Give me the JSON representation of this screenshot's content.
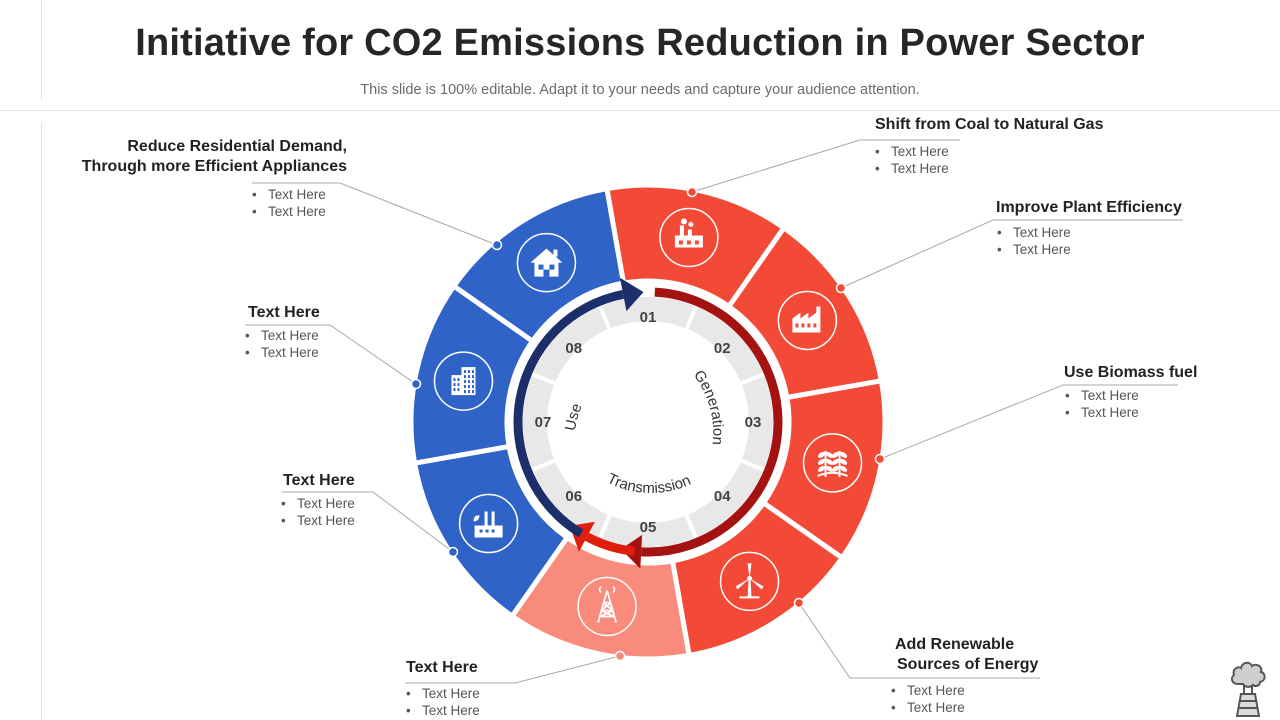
{
  "header": {
    "title": "Initiative for CO2 Emissions Reduction in Power Sector",
    "subtitle": "This slide is 100% editable. Adapt it to your needs and capture your audience attention."
  },
  "colors": {
    "red": "#F24A36",
    "red_light": "#F98B7C",
    "blue": "#3063C7",
    "dark_red_arrow": "#A51212",
    "navy_arrow": "#1C2F6B",
    "bright_red_arrow": "#E01E0E",
    "inner_ring": "#E8E8E8"
  },
  "ring": {
    "numbers": [
      "01",
      "02",
      "03",
      "04",
      "05",
      "06",
      "07",
      "08"
    ],
    "arc_labels": {
      "generation": "Generation",
      "transmission": "Transmission",
      "use": "Use"
    }
  },
  "segments": [
    {
      "icon": "power-plant-icon",
      "color": "red"
    },
    {
      "icon": "factory-icon",
      "color": "red"
    },
    {
      "icon": "crops-icon",
      "color": "red"
    },
    {
      "icon": "wind-turbine-icon",
      "color": "red"
    },
    {
      "icon": "transmission-tower-icon",
      "color": "red_light"
    },
    {
      "icon": "industrial-plant-icon",
      "color": "blue"
    },
    {
      "icon": "office-building-icon",
      "color": "blue"
    },
    {
      "icon": "house-icon",
      "color": "blue"
    }
  ],
  "callouts": {
    "seg1": {
      "title": "Shift from Coal to Natural Gas",
      "bullets": [
        "Text Here",
        "Text Here"
      ]
    },
    "seg2": {
      "title": "Improve Plant Efficiency",
      "bullets": [
        "Text Here",
        "Text Here"
      ]
    },
    "seg3": {
      "title": "Use Biomass fuel",
      "bullets": [
        "Text Here",
        "Text Here"
      ]
    },
    "seg4": {
      "title_line1": "Add Renewable",
      "title_line2": "Sources of Energy",
      "bullets": [
        "Text Here",
        "Text Here"
      ]
    },
    "seg5": {
      "title": "Text Here",
      "bullets": [
        "Text Here",
        "Text Here"
      ]
    },
    "seg6": {
      "title": "Text Here",
      "bullets": [
        "Text Here",
        "Text Here"
      ]
    },
    "seg7": {
      "title": "Text Here",
      "bullets": [
        "Text Here",
        "Text Here"
      ]
    },
    "seg8": {
      "title_line1": "Reduce Residential Demand,",
      "title_line2": "Through more Efficient Appliances",
      "bullets": [
        "Text Here",
        "Text Here"
      ]
    }
  },
  "corner": {
    "icon": "smoking-chimney-icon"
  }
}
